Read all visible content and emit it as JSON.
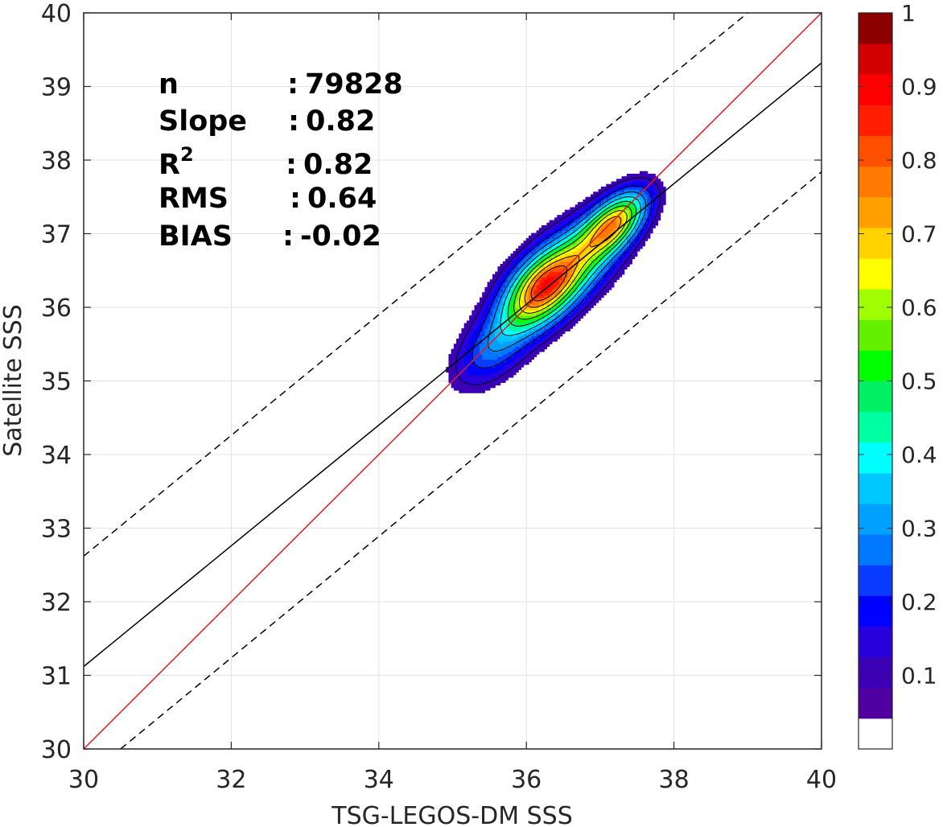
{
  "chart_data": {
    "type": "contour",
    "xlabel": "TSG-LEGOS-DM SSS",
    "ylabel": "Satellite SSS",
    "xlim": [
      30,
      40
    ],
    "ylim": [
      30,
      40
    ],
    "x_ticks": [
      "30",
      "32",
      "34",
      "36",
      "38",
      "40"
    ],
    "y_ticks": [
      "30",
      "31",
      "32",
      "33",
      "34",
      "35",
      "36",
      "37",
      "38",
      "39",
      "40"
    ],
    "grid": true,
    "stats": [
      {
        "label": "n",
        "sep": ":",
        "value": "79828"
      },
      {
        "label": "Slope",
        "sep": ":",
        "value": "0.82"
      },
      {
        "label": "R",
        "sup": "2",
        "sep": ":",
        "value": "0.82"
      },
      {
        "label": "RMS",
        "sep": ":",
        "value": "0.64"
      },
      {
        "label": "BIAS",
        "sep": ":",
        "value": "-0.02"
      }
    ],
    "lines": [
      {
        "name": "one-to-one",
        "color": "#e41a1c",
        "style": "solid",
        "points": [
          [
            30,
            30
          ],
          [
            40,
            40
          ]
        ]
      },
      {
        "name": "regression",
        "color": "#000000",
        "style": "solid",
        "points": [
          [
            30,
            31.12
          ],
          [
            40,
            39.32
          ]
        ]
      },
      {
        "name": "upper-bound",
        "color": "#000000",
        "style": "dashed",
        "points": [
          [
            30,
            32.62
          ],
          [
            39.0,
            40
          ]
        ]
      },
      {
        "name": "lower-bound",
        "color": "#000000",
        "style": "dashed",
        "points": [
          [
            30.5,
            30
          ],
          [
            40,
            37.84
          ]
        ]
      }
    ],
    "density_peaks": [
      {
        "x": 36.25,
        "y": 36.28,
        "level": 0.97
      },
      {
        "x": 37.2,
        "y": 37.15,
        "level": 0.78
      }
    ],
    "contour_levels": [
      0.1,
      0.2,
      0.3,
      0.4,
      0.5,
      0.6,
      0.7,
      0.8,
      0.9
    ],
    "colorbar": {
      "ticks": [
        "0.1",
        "0.2",
        "0.3",
        "0.4",
        "0.5",
        "0.6",
        "0.7",
        "0.8",
        "0.9",
        "1"
      ],
      "range": [
        0,
        1
      ],
      "colors": [
        "#ffffff",
        "#5000a0",
        "#3c00b4",
        "#2800dc",
        "#0000ff",
        "#0a3cff",
        "#0078ff",
        "#00a0ff",
        "#00c8ff",
        "#00ffff",
        "#00ffa0",
        "#00f064",
        "#00ff00",
        "#64f000",
        "#a0ff00",
        "#ffff00",
        "#ffd200",
        "#ffa000",
        "#ff7800",
        "#ff5000",
        "#ff1e00",
        "#ff0000",
        "#d20000",
        "#8c0000"
      ]
    }
  }
}
